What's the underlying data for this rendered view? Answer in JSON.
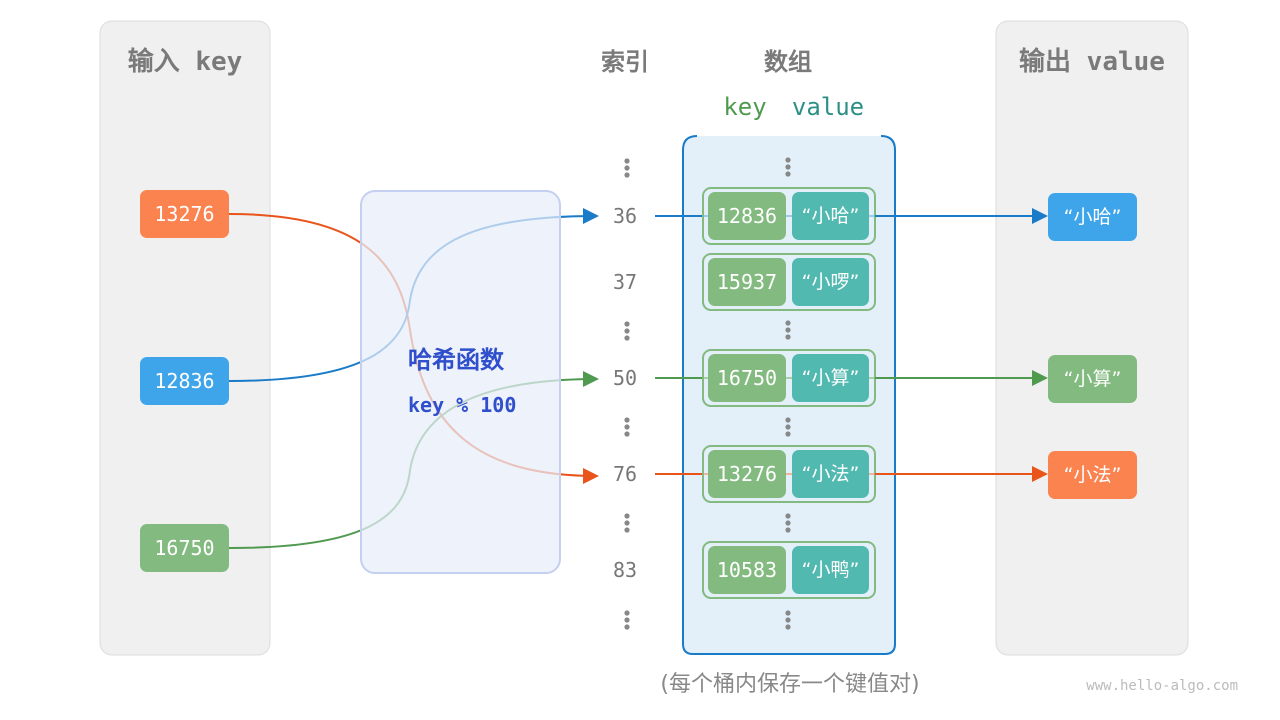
{
  "headers": {
    "input": "输入 key",
    "index": "索引",
    "array": "数组",
    "array_key": "key",
    "array_value": "value",
    "output": "输出 value"
  },
  "inputs": [
    {
      "key": "13276",
      "color": "#fb8350"
    },
    {
      "key": "12836",
      "color": "#3fa5ea"
    },
    {
      "key": "16750",
      "color": "#82ba7f"
    }
  ],
  "hash_function": {
    "title": "哈希函数",
    "formula": "key % 100"
  },
  "buckets": [
    {
      "index": "36",
      "key": "12836",
      "value": "“小哈”"
    },
    {
      "index": "37",
      "key": "15937",
      "value": "“小啰”"
    },
    {
      "index": "50",
      "key": "16750",
      "value": "“小算”"
    },
    {
      "index": "76",
      "key": "13276",
      "value": "“小法”"
    },
    {
      "index": "83",
      "key": "10583",
      "value": "“小鸭”"
    }
  ],
  "outputs": [
    {
      "value": "“小哈”",
      "color": "#3fa5ea"
    },
    {
      "value": "“小算”",
      "color": "#82ba7f"
    },
    {
      "value": "“小法”",
      "color": "#fb8350"
    }
  ],
  "colors": {
    "key_cell": "#82ba7f",
    "value_cell": "#52b9b0",
    "array_border": "#1a7bc8",
    "hash_text": "#2f4fcc"
  },
  "footer": {
    "note": "(每个桶内保存一个键值对)",
    "watermark": "www.hello-algo.com"
  }
}
